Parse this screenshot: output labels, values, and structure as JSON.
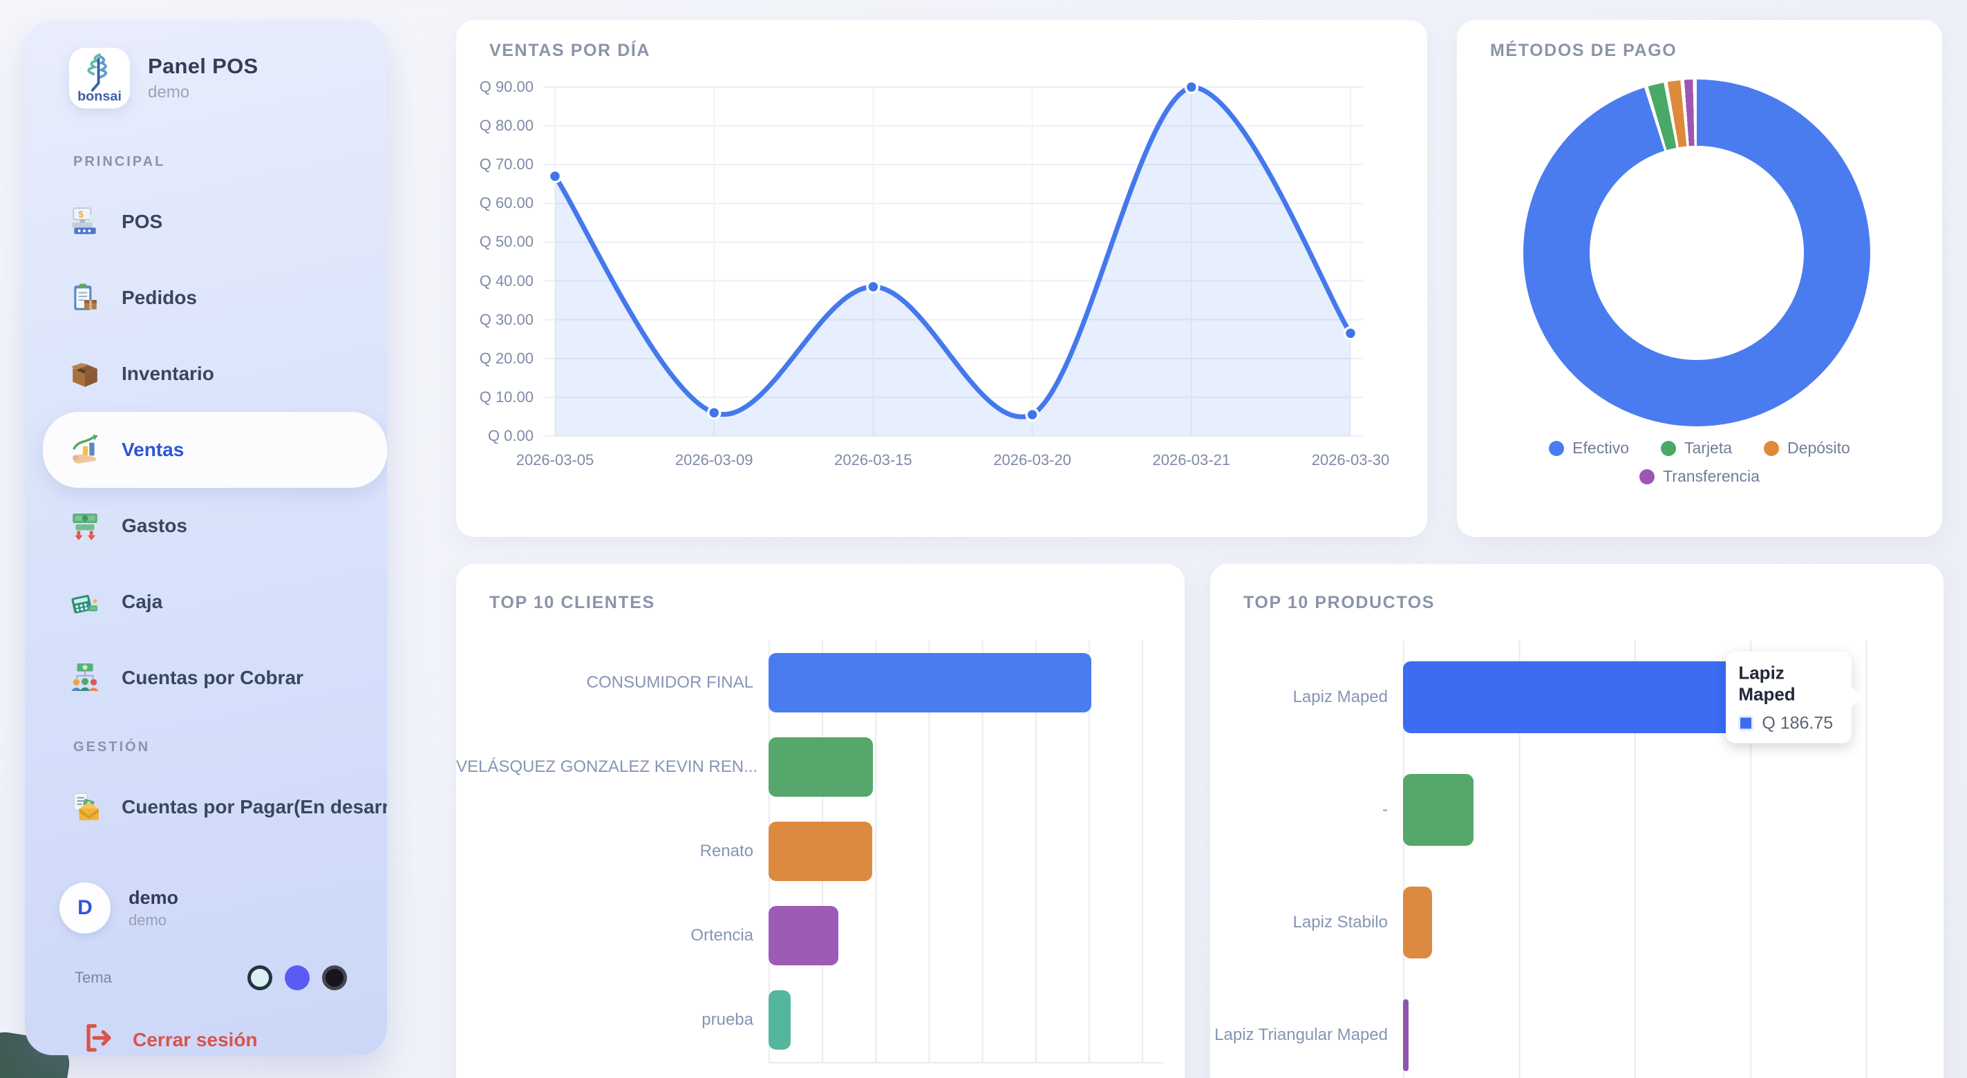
{
  "app": {
    "name": "Panel POS",
    "subtitle": "demo",
    "logo_text": "bonsai"
  },
  "sidebar": {
    "sections": [
      {
        "label": "PRINCIPAL",
        "items": [
          {
            "label": "POS",
            "icon": "pos-register-icon",
            "active": false
          },
          {
            "label": "Pedidos",
            "icon": "order-clipboard-icon",
            "active": false
          },
          {
            "label": "Inventario",
            "icon": "inventory-box-icon",
            "active": false
          },
          {
            "label": "Ventas",
            "icon": "sales-chart-hand-icon",
            "active": true
          },
          {
            "label": "Gastos",
            "icon": "expenses-money-down-icon",
            "active": false
          },
          {
            "label": "Caja",
            "icon": "cash-register-icon",
            "active": false
          },
          {
            "label": "Cuentas por Cobrar",
            "icon": "receivables-people-icon",
            "active": false
          }
        ]
      },
      {
        "label": "GESTIÓN",
        "items": [
          {
            "label": "Cuentas por Pagar(En desarro",
            "icon": "payables-envelope-icon",
            "active": false
          }
        ]
      }
    ],
    "user": {
      "initial": "D",
      "name": "demo",
      "role": "demo"
    },
    "theme": {
      "label": "Tema",
      "options": [
        {
          "name": "light",
          "fill": "#dfeef2",
          "border": "#1d3742"
        },
        {
          "name": "indigo",
          "fill": "#5a5af5",
          "border": "#5a5af5"
        },
        {
          "name": "dark",
          "fill": "#16151f",
          "border": "#45454f"
        }
      ]
    },
    "logout_label": "Cerrar sesión"
  },
  "colors": {
    "accent_blue": "#4478ec",
    "card_title": "#8a94a8",
    "logout_red": "#d9534a",
    "active_item_text": "#2e55d4"
  },
  "chart_data": [
    {
      "type": "line",
      "title": "VENTAS POR DÍA",
      "x": [
        "2026-03-05",
        "2026-03-09",
        "2026-03-15",
        "2026-03-20",
        "2026-03-21",
        "2026-03-30"
      ],
      "values": [
        67,
        6,
        38.5,
        5.5,
        90,
        26.5
      ],
      "ylim": [
        0,
        90
      ],
      "ytick_step": 10,
      "tick_prefix": "Q ",
      "grid": true,
      "legend_position": "none",
      "line_color": "#4478ec",
      "point_color": "#3f74ea",
      "fill_color": "rgba(68,120,236,0.13)"
    },
    {
      "type": "pie",
      "subtype": "donut",
      "title": "MÉTODOS DE PAGO",
      "labels": [
        "Efectivo",
        "Tarjeta",
        "Depósito",
        "Transferencia"
      ],
      "values_pct": [
        96.5,
        1.5,
        1.2,
        0.8
      ],
      "colors": [
        "#4a7cf0",
        "#4ba968",
        "#dd8a3c",
        "#9d56b4"
      ],
      "legend_position": "bottom"
    },
    {
      "type": "bar",
      "orientation": "horizontal",
      "title": "TOP 10 CLIENTES",
      "categories": [
        "CONSUMIDOR FINAL",
        "VELÁSQUEZ GONZALEZ  KEVIN REN...",
        "Renato",
        "Ortencia",
        "prueba"
      ],
      "values": [
        60.5,
        19.6,
        19.5,
        13.1,
        4.2
      ],
      "xlim": [
        0,
        74
      ],
      "xtick_step": 10,
      "tick_prefix": "Q ",
      "grid": true,
      "colors": [
        "#4a7cf0",
        "#55a76b",
        "#dd8a41",
        "#9d5bb5",
        "#54b79d"
      ]
    },
    {
      "type": "bar",
      "orientation": "horizontal",
      "title": "TOP 10 PRODUCTOS",
      "categories": [
        "Lapiz Maped",
        "-",
        "Lapiz Stabilo",
        "Lapiz Triangular Maped"
      ],
      "values": [
        186.75,
        30.5,
        12.5,
        2.4
      ],
      "xlim": [
        0,
        218
      ],
      "xtick_step": 50,
      "tick_prefix": "Q ",
      "grid": true,
      "colors": [
        "#3b6cf2",
        "#55a76b",
        "#dd8a41",
        "#8e56ad"
      ],
      "tooltip": {
        "category": "Lapiz Maped",
        "value_label": "Q 186.75",
        "color": "#3b6cf2"
      }
    }
  ]
}
